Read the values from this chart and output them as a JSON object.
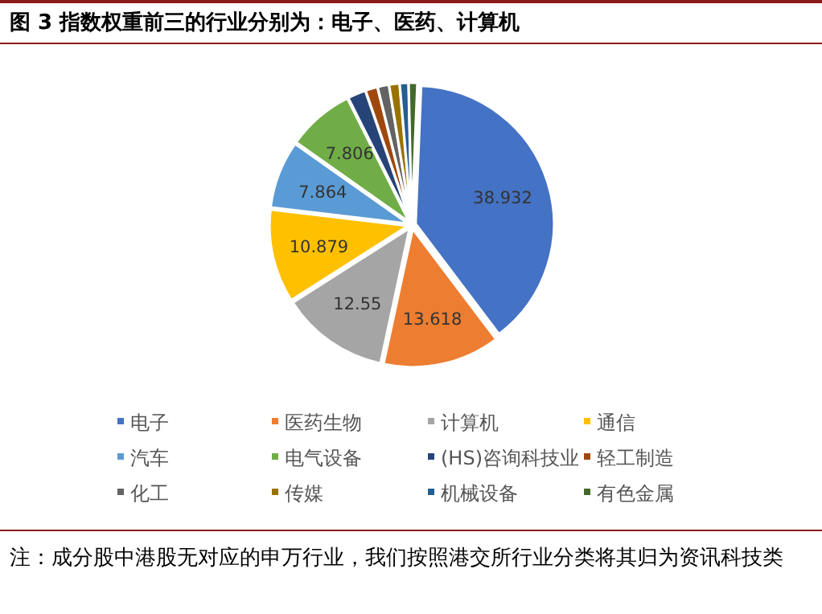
{
  "chart_data": {
    "type": "pie",
    "title": "图 3  指数权重前三的行业分别为：电子、医药、计算机",
    "categories": [
      "电子",
      "医药生物",
      "计算机",
      "通信",
      "汽车",
      "电气设备",
      "(HS)咨询科技业",
      "轻工制造",
      "化工",
      "传媒",
      "机械设备",
      "有色金属"
    ],
    "values": [
      38.932,
      13.618,
      12.55,
      10.879,
      7.864,
      7.806,
      2.1,
      1.4,
      1.3,
      1.2,
      1.0,
      1.0
    ],
    "colors": [
      "#4472c4",
      "#ed7d31",
      "#a5a5a5",
      "#ffc000",
      "#5b9bd5",
      "#70ad47",
      "#264478",
      "#9e480e",
      "#636363",
      "#997300",
      "#255e91",
      "#43682b"
    ],
    "value_labels": [
      "38.932",
      "13.618",
      "12.55",
      "10.879",
      "7.864",
      "7.806",
      null,
      null,
      null,
      null,
      null,
      null
    ],
    "legend": "bottom",
    "annotations": [
      "注：成分股中港股无对应的申万行业，我们按照港交所行业分类将其归为资讯科技类"
    ]
  }
}
